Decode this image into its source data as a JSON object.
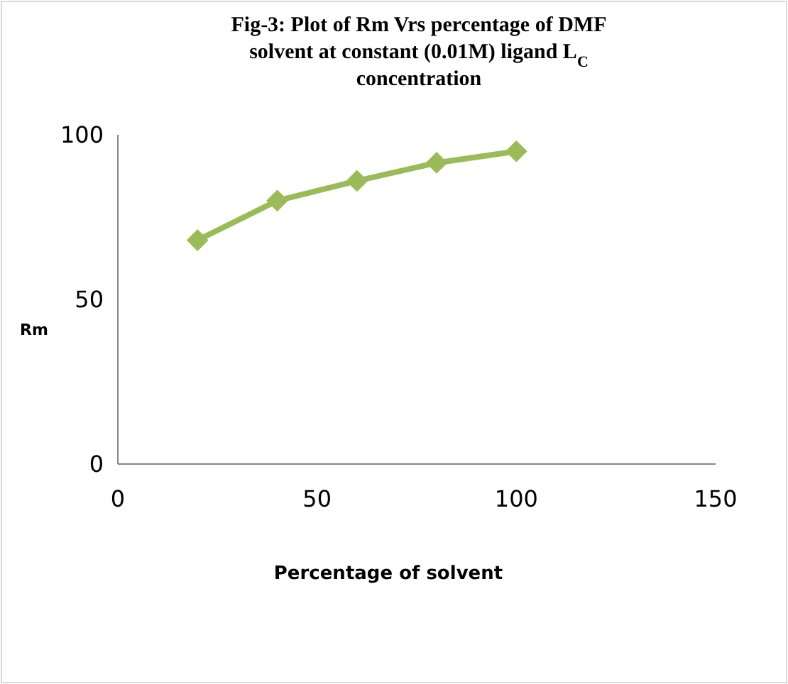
{
  "chart_data": {
    "type": "line",
    "title": "Fig-3: Plot of Rm Vrs percentage of DMF solvent at constant (0.01M) ligand  L$_{C}$ concentration",
    "xlabel": "Percentage of solvent",
    "ylabel": "Rm",
    "x": [
      20,
      40,
      60,
      80,
      100
    ],
    "series": [
      {
        "color": "#9bbb59",
        "values": [
          68,
          80,
          86,
          91.5,
          95
        ]
      }
    ],
    "xlim": [
      0,
      150
    ],
    "xticks": [
      0,
      50,
      100,
      150
    ],
    "ylim": [
      0,
      100
    ],
    "yticks": [
      0,
      50,
      100
    ],
    "grid": false,
    "marker": "diamond",
    "line_style": "solid"
  }
}
